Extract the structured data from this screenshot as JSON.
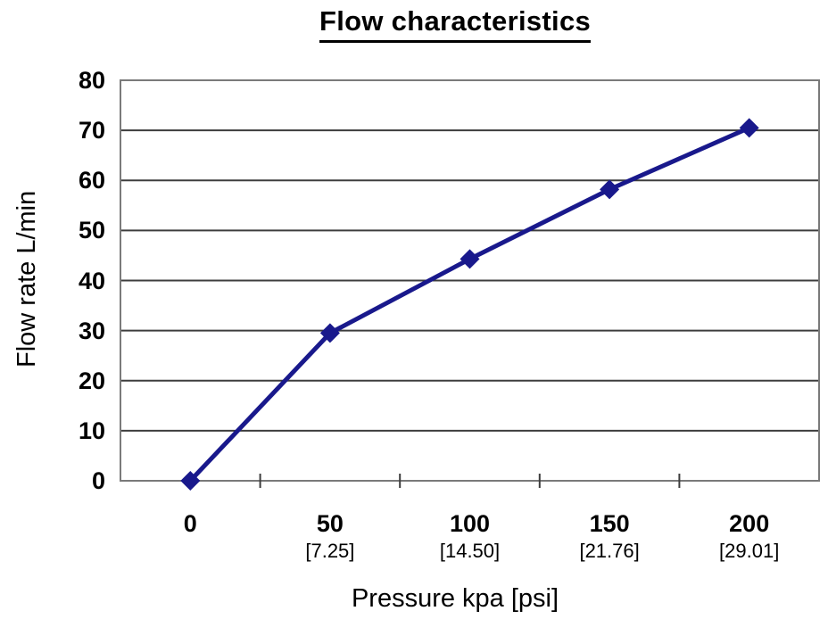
{
  "chart_data": {
    "type": "line",
    "title": "Flow characteristics",
    "xlabel": "Pressure kpa [psi]",
    "ylabel": "Flow rate L/min",
    "categories": [
      "0",
      "50",
      "100",
      "150",
      "200"
    ],
    "x_sub_labels": [
      "",
      "[7.25]",
      "[14.50]",
      "[21.76]",
      "[29.01]"
    ],
    "values": [
      0,
      29.5,
      44.3,
      58.2,
      70.5
    ],
    "y_ticks": [
      0,
      10,
      20,
      30,
      40,
      50,
      60,
      70,
      80
    ],
    "ylim": [
      0,
      80
    ],
    "grid": "horizontal-major",
    "legend_position": "none",
    "marker": "diamond",
    "colors": {
      "series": "#19198C",
      "gridline": "#3D3D3D",
      "axis_border": "#7A7A7A",
      "text": "#000000",
      "background": "#FFFFFF"
    }
  }
}
